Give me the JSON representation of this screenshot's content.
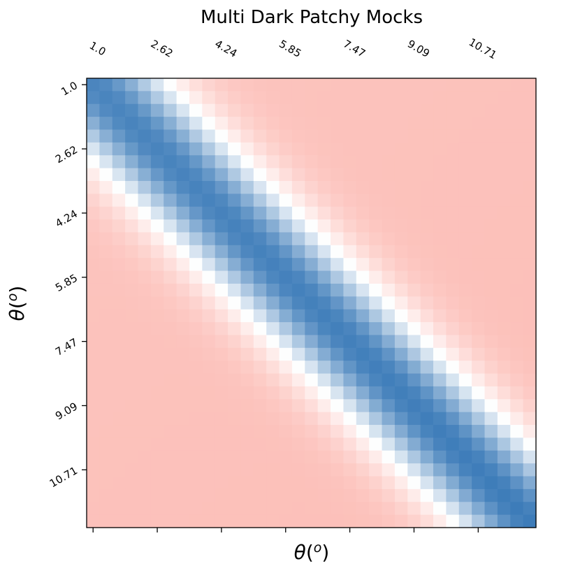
{
  "chart_data": {
    "type": "heatmap",
    "title": "Multi Dark Patchy Mocks",
    "xlabel": "θ(o)",
    "ylabel": "θ(o)",
    "x_tick_labels": [
      "1.0",
      "2.62",
      "4.24",
      "5.85",
      "7.47",
      "9.09",
      "10.71"
    ],
    "y_tick_labels": [
      "1.0",
      "2.62",
      "4.24",
      "5.85",
      "7.47",
      "9.09",
      "10.71"
    ],
    "x_tick_positions": [
      0,
      5,
      10,
      15,
      20,
      25,
      30
    ],
    "y_tick_positions": [
      0,
      5,
      10,
      15,
      20,
      25,
      30
    ],
    "n_bins": 35,
    "colormap": {
      "negative": "#fa8b7f",
      "zero": "#ffffff",
      "positive": "#3d7cb9"
    },
    "value_range": [
      -1,
      1
    ],
    "pattern": "correlation-like: +1 on diagonal, decreasing with |i-j|, turning negative (~-0.55) in off-diagonal corners",
    "grid": false
  }
}
